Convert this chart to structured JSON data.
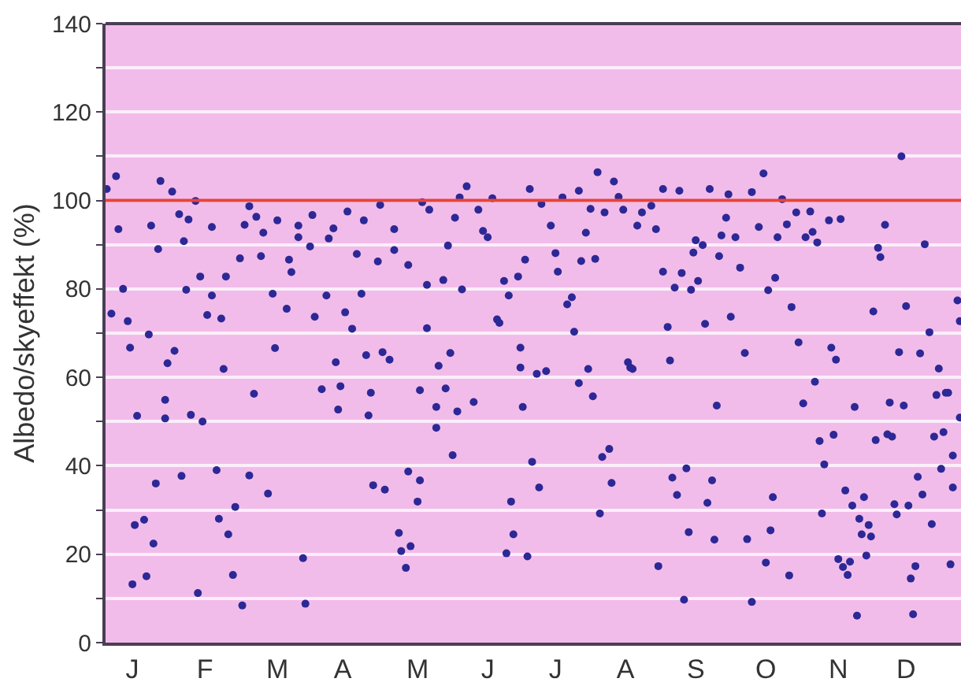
{
  "chart_data": {
    "type": "scatter",
    "ylabel": "Albedo/skyeffekt (%)",
    "categories": [
      null,
      null,
      null,
      null,
      null,
      null,
      null,
      null,
      null,
      null,
      null,
      "J",
      null,
      null,
      null,
      null,
      null,
      null,
      null,
      null,
      null,
      null,
      null,
      null,
      null,
      null,
      null,
      null,
      null,
      null,
      null,
      null,
      null,
      null,
      null,
      null,
      null,
      null,
      null,
      null,
      null,
      null,
      "F",
      null,
      null,
      null,
      null,
      null,
      null,
      null,
      null,
      null,
      null,
      null,
      null,
      null,
      null,
      null,
      null,
      null,
      null,
      null,
      null,
      null,
      null,
      null,
      null,
      null,
      null,
      null,
      null,
      null,
      null,
      "M",
      null,
      null,
      null,
      null,
      null,
      null,
      null,
      null,
      null,
      null,
      null,
      null,
      null,
      null,
      null,
      null,
      null,
      null,
      null,
      null,
      null,
      null,
      null,
      null,
      null,
      null,
      null,
      "A",
      null,
      null,
      null,
      null,
      null,
      null,
      null,
      null,
      null,
      null,
      null,
      null,
      null,
      null,
      null,
      null,
      null,
      null,
      null,
      null,
      null,
      null,
      null,
      null,
      null,
      null,
      null,
      null,
      null,
      null,
      null,
      "M",
      null,
      null,
      null,
      null,
      null,
      null,
      null,
      null,
      null,
      null,
      null,
      null,
      null,
      null,
      null,
      null,
      null,
      null,
      null,
      null,
      null,
      null,
      null,
      null,
      null,
      null,
      null,
      null,
      null,
      "J",
      null,
      null,
      null,
      null,
      null,
      null,
      null,
      null,
      null,
      null,
      null,
      null,
      null,
      null,
      null,
      null,
      null,
      null,
      null,
      null,
      null,
      null,
      null,
      null,
      null,
      null,
      null,
      null,
      "J",
      null,
      null,
      null,
      null,
      null,
      null,
      null,
      null,
      null,
      null,
      null,
      null,
      null,
      null,
      null,
      null,
      null,
      null,
      null,
      null,
      null,
      null,
      null,
      null,
      null,
      null,
      null,
      null,
      null,
      "A",
      null,
      null,
      null,
      null,
      null,
      null,
      null,
      null,
      null,
      null,
      null,
      null,
      null,
      null,
      null,
      null,
      null,
      null,
      null,
      null,
      null,
      null,
      null,
      null,
      null,
      null,
      null,
      null,
      null,
      "S",
      null,
      null,
      null,
      null,
      null,
      null,
      null,
      null,
      null,
      null,
      null,
      null,
      null,
      null,
      null,
      null,
      null,
      null,
      null,
      null,
      null,
      null,
      null,
      null,
      null,
      null,
      null,
      null,
      null,
      "O",
      null,
      null,
      null,
      null,
      null,
      null,
      null,
      null,
      null,
      null,
      null,
      null,
      null,
      null,
      null,
      null,
      null,
      null,
      null,
      null,
      null,
      null,
      null,
      null,
      null,
      null,
      null,
      null,
      null,
      null,
      "N",
      null,
      null,
      null,
      null,
      null,
      null,
      null,
      null,
      null,
      null,
      null,
      null,
      null,
      null,
      null,
      null,
      null,
      null,
      null,
      null,
      null,
      null,
      null,
      null,
      null,
      null,
      null,
      null,
      "D",
      null,
      null,
      null,
      null,
      null,
      null,
      null,
      null,
      null,
      null,
      null,
      null,
      null,
      null,
      null,
      null,
      null,
      null,
      null,
      null,
      null,
      null,
      null
    ],
    "ylim": [
      0,
      140
    ],
    "yticks": [
      0,
      {
        "value": 10,
        "label": null
      },
      20,
      {
        "value": 30,
        "label": null
      },
      40,
      {
        "value": 50,
        "label": null
      },
      60,
      {
        "value": 70,
        "label": null
      },
      80,
      {
        "value": 90,
        "label": null
      },
      100,
      {
        "value": 110,
        "label": null
      },
      120,
      {
        "value": 130,
        "label": null
      },
      140
    ],
    "grid": "y",
    "marker": "circle",
    "ref_lines": [
      {
        "axis": "y",
        "value": 100,
        "color": "#e8433a"
      }
    ],
    "series": [
      {
        "color": "#2c2896",
        "values": [
          102.6,
          null,
          74.4,
          null,
          105.5,
          93.5,
          null,
          80,
          null,
          72.7,
          66.7,
          13.2,
          26.6,
          51.3,
          null,
          null,
          27.8,
          15,
          69.7,
          94.3,
          22.4,
          36,
          89,
          104.4,
          null,
          54.9,
          63.2,
          null,
          102,
          66,
          null,
          96.9,
          37.7,
          90.8,
          79.8,
          95.7,
          51.5,
          null,
          99.9,
          11.2,
          82.8,
          50,
          null,
          74.1,
          null,
          94,
          null,
          39,
          28,
          73.3,
          61.9,
          82.8,
          24.5,
          null,
          15.3,
          30.7,
          null,
          86.9,
          8.4,
          94.5,
          null,
          37.8,
          null,
          56.3,
          96.3,
          null,
          87.4,
          92.7,
          null,
          33.7,
          null,
          78.9,
          66.6,
          95.5,
          null,
          null,
          null,
          75.5,
          86.6,
          83.8,
          null,
          null,
          94.3,
          null,
          19.1,
          8.8,
          null,
          89.6,
          96.7,
          73.7,
          null,
          null,
          57.3,
          null,
          78.5,
          91.4,
          null,
          93.7,
          63.4,
          52.7,
          58,
          null,
          74.7,
          97.5,
          null,
          71,
          null,
          87.9,
          null,
          78.9,
          95.5,
          65,
          51.4,
          56.5,
          35.6,
          null,
          86.2,
          99,
          65.7,
          34.6,
          null,
          64,
          null,
          93.5,
          null,
          24.8,
          20.7,
          null,
          16.9,
          85.4,
          21.8,
          null,
          null,
          31.9,
          36.7,
          99.6,
          null,
          80.9,
          97.9,
          null,
          null,
          53.3,
          62.6,
          null,
          82,
          57.5,
          89.8,
          65.5,
          42.4,
          96.1,
          52.3,
          100.7,
          79.9,
          null,
          103.2,
          null,
          null,
          54.4,
          null,
          97.9,
          null,
          93.1,
          null,
          91.7,
          null,
          100.5,
          null,
          73.1,
          72.3,
          null,
          81.8,
          20.2,
          78.5,
          31.9,
          24.5,
          null,
          82.8,
          66.7,
          53.3,
          86.6,
          19.5,
          102.6,
          40.9,
          null,
          60.8,
          35.1,
          99.2,
          null,
          61.4,
          null,
          94.3,
          null,
          88.1,
          83.9,
          null,
          100.7,
          null,
          76.5,
          null,
          78.1,
          70.3,
          null,
          102.2,
          86.3,
          null,
          92.7,
          61.9,
          98.1,
          55.7,
          86.8,
          106.4,
          29.2,
          42,
          97.3,
          null,
          43.8,
          36.1,
          104.3,
          null,
          100.8,
          null,
          97.9,
          null,
          63.4,
          62.2,
          61.9,
          null,
          94.3,
          null,
          97.3,
          null,
          null,
          null,
          98.8,
          null,
          93.5,
          17.3,
          null,
          102.6,
          null,
          71.4,
          63.8,
          37.3,
          80.3,
          33.4,
          102.2,
          83.6,
          9.7,
          39.4,
          25,
          79.8,
          88.2,
          91,
          81.8,
          null,
          89.9,
          72.1,
          31.6,
          102.6,
          36.7,
          23.3,
          53.6,
          87.4,
          92.1,
          null,
          96.1,
          101.4,
          73.7,
          null,
          91.7,
          null,
          84.8,
          null,
          65.5,
          23.4,
          null,
          9.2,
          null,
          null,
          94,
          null,
          106.1,
          18.1,
          79.7,
          25.4,
          32.9,
          82.5,
          91.7,
          null,
          100.3,
          null,
          94.6,
          15.2,
          75.9,
          null,
          97.3,
          67.9,
          null,
          54.1,
          91.7,
          null,
          97.5,
          92.9,
          59,
          90.5,
          45.6,
          29.2,
          40.3,
          null,
          95.5,
          66.7,
          47,
          64,
          18.9,
          95.8,
          17.1,
          34.4,
          15.3,
          18.3,
          31,
          53.3,
          6.1,
          28,
          24.5,
          32.9,
          19.7,
          26.6,
          24,
          74.9,
          45.8,
          89.3,
          87.2,
          null,
          94.5,
          47.1,
          54.3,
          46.6,
          31.3,
          29,
          65.7,
          110,
          53.6,
          76.1,
          31,
          14.5,
          6.4,
          17.3,
          37.5,
          65.4,
          33.5,
          90.1,
          null,
          70.2,
          26.8,
          46.6,
          56,
          62,
          39.3,
          47.6,
          56.5,
          56.5,
          17.7,
          42.3,
          null,
          77.4,
          72.7
        ]
      },
      {
        "color": "#2c2896",
        "values": [
          null,
          null,
          null,
          null,
          null,
          null,
          null,
          null,
          null,
          null,
          null,
          null,
          null,
          null,
          null,
          null,
          null,
          null,
          null,
          null,
          null,
          null,
          null,
          null,
          null,
          50.7,
          null,
          null,
          null,
          null,
          null,
          null,
          null,
          null,
          null,
          null,
          null,
          null,
          null,
          null,
          null,
          null,
          null,
          null,
          null,
          78.5,
          null,
          null,
          null,
          null,
          null,
          null,
          null,
          null,
          null,
          null,
          null,
          null,
          null,
          null,
          null,
          98.7,
          null,
          null,
          null,
          null,
          null,
          null,
          null,
          null,
          null,
          null,
          null,
          null,
          null,
          null,
          null,
          null,
          null,
          null,
          null,
          null,
          91.7,
          null,
          null,
          null,
          null,
          null,
          null,
          null,
          null,
          null,
          null,
          null,
          null,
          null,
          null,
          null,
          null,
          null,
          null,
          null,
          null,
          null,
          null,
          null,
          null,
          null,
          null,
          null,
          null,
          null,
          null,
          null,
          null,
          null,
          null,
          null,
          null,
          null,
          null,
          null,
          null,
          88.8,
          null,
          null,
          null,
          null,
          null,
          38.7,
          null,
          null,
          null,
          null,
          57.1,
          null,
          null,
          71.1,
          null,
          null,
          null,
          48.6,
          null,
          null,
          null,
          null,
          null,
          null,
          null,
          null,
          null,
          null,
          null,
          null,
          null,
          null,
          null,
          null,
          null,
          null,
          null,
          null,
          null,
          null,
          null,
          null,
          null,
          null,
          null,
          null,
          null,
          null,
          null,
          null,
          null,
          null,
          null,
          62.2,
          null,
          null,
          null,
          null,
          null,
          null,
          null,
          null,
          null,
          null,
          null,
          null,
          null,
          null,
          null,
          null,
          null,
          null,
          null,
          null,
          null,
          null,
          null,
          null,
          58.7,
          null,
          null,
          null,
          null,
          null,
          null,
          null,
          null,
          null,
          null,
          null,
          null,
          null,
          null,
          null,
          null,
          null,
          null,
          null,
          null,
          null,
          null,
          null,
          null,
          null,
          null,
          null,
          null,
          null,
          null,
          null,
          null,
          null,
          null,
          null,
          83.9,
          null,
          null,
          null,
          null,
          null,
          null,
          null,
          null,
          null,
          null,
          null,
          null,
          null,
          null,
          null,
          null,
          null,
          null,
          null,
          null,
          null,
          null,
          null,
          null,
          null,
          null,
          null,
          null,
          null,
          null,
          null,
          null,
          null,
          null,
          null,
          null,
          null,
          101.9,
          null,
          null,
          null,
          null,
          null,
          null,
          null,
          null,
          null,
          null,
          null,
          null,
          null,
          null,
          null,
          null,
          null,
          null,
          null,
          null,
          null,
          null,
          null,
          null,
          null,
          null,
          null,
          null,
          null,
          null,
          null,
          null,
          null,
          null,
          null,
          null,
          null,
          null,
          null,
          null,
          null,
          null,
          null,
          null,
          null,
          null,
          null,
          null,
          null,
          null,
          null,
          null,
          null,
          null,
          null,
          null,
          null,
          null,
          null,
          null,
          null,
          null,
          null,
          null,
          null,
          null,
          null,
          null,
          null,
          null,
          null,
          null,
          null,
          null,
          null,
          null,
          null,
          null,
          null,
          null,
          null,
          null,
          null,
          null,
          null,
          35.1,
          null,
          null,
          50.9
        ]
      }
    ]
  }
}
